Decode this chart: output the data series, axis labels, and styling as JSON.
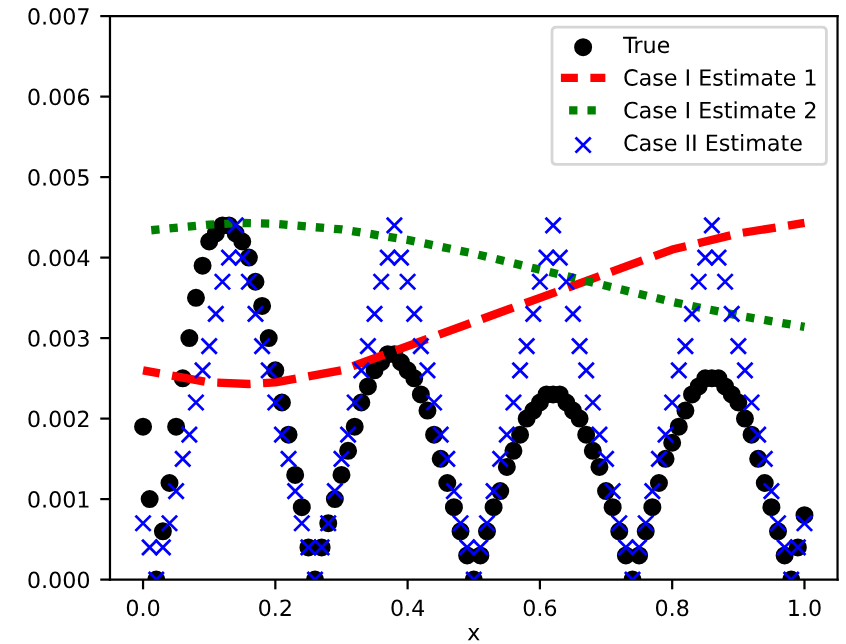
{
  "chart_data": {
    "type": "scatter",
    "xlabel": "x",
    "xlim": [
      -0.05,
      1.05
    ],
    "ylim": [
      0,
      0.007
    ],
    "xticks": [
      {
        "value": 0,
        "label": "0.0"
      },
      {
        "value": 0.2,
        "label": "0.2"
      },
      {
        "value": 0.4,
        "label": "0.4"
      },
      {
        "value": 0.6,
        "label": "0.6"
      },
      {
        "value": 0.8,
        "label": "0.8"
      },
      {
        "value": 1.0,
        "label": "1.0"
      }
    ],
    "yticks": [
      {
        "value": 0,
        "label": "0.000"
      },
      {
        "value": 0.001,
        "label": "0.001"
      },
      {
        "value": 0.002,
        "label": "0.002"
      },
      {
        "value": 0.003,
        "label": "0.003"
      },
      {
        "value": 0.004,
        "label": "0.004"
      },
      {
        "value": 0.005,
        "label": "0.005"
      },
      {
        "value": 0.006,
        "label": "0.006"
      },
      {
        "value": 0.007,
        "label": "0.007"
      }
    ],
    "grid": false,
    "legend": "top right",
    "x": [
      0,
      0.01,
      0.02,
      0.03,
      0.04,
      0.05,
      0.06,
      0.07,
      0.08,
      0.09,
      0.1,
      0.11,
      0.12,
      0.13,
      0.14,
      0.15,
      0.16,
      0.17,
      0.18,
      0.19,
      0.2,
      0.21,
      0.22,
      0.23,
      0.24,
      0.25,
      0.26,
      0.27,
      0.28,
      0.29,
      0.3,
      0.31,
      0.32,
      0.33,
      0.34,
      0.35,
      0.36,
      0.37,
      0.38,
      0.39,
      0.4,
      0.41,
      0.42,
      0.43,
      0.44,
      0.45,
      0.46,
      0.47,
      0.48,
      0.49,
      0.5,
      0.51,
      0.52,
      0.53,
      0.54,
      0.55,
      0.56,
      0.57,
      0.58,
      0.59,
      0.6,
      0.61,
      0.62,
      0.63,
      0.64,
      0.65,
      0.66,
      0.67,
      0.68,
      0.69,
      0.7,
      0.71,
      0.72,
      0.73,
      0.74,
      0.75,
      0.76,
      0.77,
      0.78,
      0.79,
      0.8,
      0.81,
      0.82,
      0.83,
      0.84,
      0.85,
      0.86,
      0.87,
      0.88,
      0.89,
      0.9,
      0.91,
      0.92,
      0.93,
      0.94,
      0.95,
      0.96,
      0.97,
      0.98,
      0.99,
      1.0
    ],
    "series": [
      {
        "name": "True",
        "marker": "circle",
        "color": "#000000",
        "values": [
          0.0019,
          0.001,
          0.0,
          0.0006,
          0.0012,
          0.0019,
          0.0025,
          0.003,
          0.0035,
          0.0039,
          0.0042,
          0.0043,
          0.0044,
          0.0044,
          0.0043,
          0.0042,
          0.004,
          0.0037,
          0.0034,
          0.003,
          0.0026,
          0.0022,
          0.0018,
          0.0013,
          0.0009,
          0.0004,
          0.0,
          0.0004,
          0.0007,
          0.001,
          0.0013,
          0.0016,
          0.0019,
          0.0022,
          0.0024,
          0.0026,
          0.0027,
          0.0028,
          0.0028,
          0.0027,
          0.0026,
          0.0025,
          0.0023,
          0.0021,
          0.0018,
          0.0015,
          0.0012,
          0.0009,
          0.0006,
          0.0003,
          0.0,
          0.0003,
          0.0006,
          0.0009,
          0.0011,
          0.0014,
          0.0016,
          0.0018,
          0.002,
          0.0021,
          0.0022,
          0.0023,
          0.0023,
          0.0023,
          0.0022,
          0.0021,
          0.002,
          0.0018,
          0.0016,
          0.0014,
          0.0011,
          0.0009,
          0.0006,
          0.0003,
          0.0,
          0.0003,
          0.0006,
          0.0009,
          0.0012,
          0.0015,
          0.0017,
          0.0019,
          0.0021,
          0.0023,
          0.0024,
          0.0025,
          0.0025,
          0.0025,
          0.0024,
          0.0023,
          0.0022,
          0.002,
          0.0018,
          0.0015,
          0.0012,
          0.0009,
          0.0006,
          0.0003,
          0.0,
          0.0004,
          0.0008
        ]
      },
      {
        "name": "Case I Estimate 1",
        "type": "line",
        "marker": "none",
        "line_style": "dashed",
        "color": "#ff0000",
        "x": [
          0,
          0.1,
          0.16,
          0.2,
          0.3,
          0.4,
          0.5,
          0.6,
          0.7,
          0.8,
          0.9,
          1.0
        ],
        "values": [
          0.0026,
          0.00245,
          0.00243,
          0.00245,
          0.0026,
          0.0029,
          0.0032,
          0.0035,
          0.0038,
          0.0041,
          0.0043,
          0.00443
        ]
      },
      {
        "name": "Case I Estimate 2",
        "type": "line",
        "marker": "none",
        "line_style": "dotted",
        "color": "#008000",
        "x": [
          0,
          0.1,
          0.15,
          0.2,
          0.3,
          0.4,
          0.5,
          0.6,
          0.7,
          0.8,
          0.9,
          1.0
        ],
        "values": [
          0.00433,
          0.00441,
          0.00443,
          0.00442,
          0.00435,
          0.00422,
          0.00405,
          0.00385,
          0.00365,
          0.00345,
          0.00328,
          0.00314
        ]
      },
      {
        "name": "Case II Estimate",
        "marker": "cross",
        "color": "#0000ff",
        "values": [
          0.0007,
          0.0004,
          0.0,
          0.0004,
          0.0007,
          0.0011,
          0.0015,
          0.0018,
          0.0022,
          0.0026,
          0.0029,
          0.0033,
          0.0037,
          0.004,
          0.0044,
          0.004,
          0.0037,
          0.0033,
          0.0029,
          0.0026,
          0.0022,
          0.0018,
          0.0015,
          0.0011,
          0.0007,
          0.0004,
          0.0,
          0.0004,
          0.0007,
          0.0011,
          0.0015,
          0.0018,
          0.0022,
          0.0026,
          0.0029,
          0.0033,
          0.0037,
          0.004,
          0.0044,
          0.004,
          0.0037,
          0.0033,
          0.0029,
          0.0026,
          0.0022,
          0.0018,
          0.0015,
          0.0011,
          0.0007,
          0.0004,
          0.0,
          0.0004,
          0.0007,
          0.0011,
          0.0015,
          0.0018,
          0.0022,
          0.0026,
          0.0029,
          0.0033,
          0.0037,
          0.004,
          0.0044,
          0.004,
          0.0037,
          0.0033,
          0.0029,
          0.0026,
          0.0022,
          0.0018,
          0.0015,
          0.0011,
          0.0007,
          0.0004,
          0.0,
          0.0004,
          0.0007,
          0.0011,
          0.0015,
          0.0018,
          0.0022,
          0.0026,
          0.0029,
          0.0033,
          0.0037,
          0.004,
          0.0044,
          0.004,
          0.0037,
          0.0033,
          0.0029,
          0.0026,
          0.0022,
          0.0018,
          0.0015,
          0.0011,
          0.0007,
          0.0004,
          0.0,
          0.0004,
          0.0007
        ]
      }
    ]
  }
}
